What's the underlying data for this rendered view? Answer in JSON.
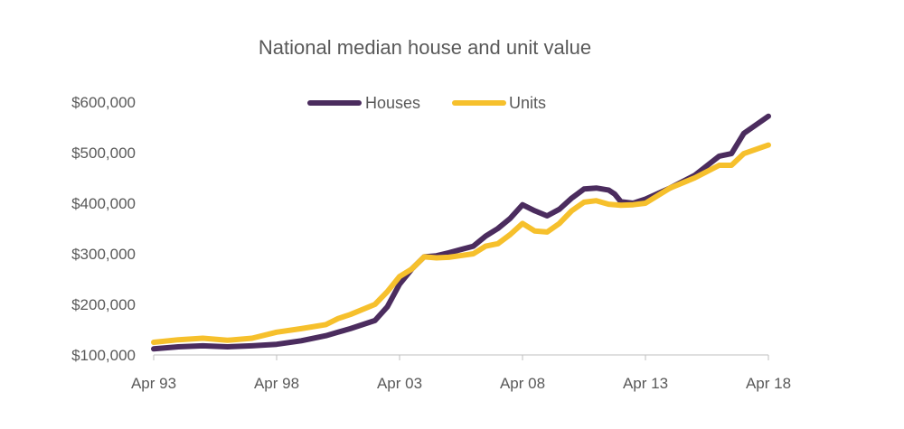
{
  "chart_data": {
    "type": "line",
    "title": "National median house and unit value",
    "xlabel": "",
    "ylabel": "",
    "x_tick_labels": [
      "Apr 93",
      "Apr 98",
      "Apr 03",
      "Apr 08",
      "Apr 13",
      "Apr 18"
    ],
    "y_tick_labels": [
      "$100,000",
      "$200,000",
      "$300,000",
      "$400,000",
      "$500,000",
      "$600,000"
    ],
    "ylim": [
      100000,
      600000
    ],
    "xlim": [
      "1993-04",
      "2018-04"
    ],
    "grid": false,
    "legend_position": "top-center",
    "series": [
      {
        "name": "Houses",
        "color": "#4b2c5e",
        "points": [
          [
            "1993-04",
            112000
          ],
          [
            "1994-04",
            116000
          ],
          [
            "1995-04",
            118000
          ],
          [
            "1996-04",
            116000
          ],
          [
            "1997-04",
            118000
          ],
          [
            "1998-04",
            121000
          ],
          [
            "1999-04",
            128000
          ],
          [
            "2000-04",
            138000
          ],
          [
            "2000-10",
            145000
          ],
          [
            "2001-04",
            152000
          ],
          [
            "2002-04",
            168000
          ],
          [
            "2002-10",
            195000
          ],
          [
            "2003-04",
            240000
          ],
          [
            "2003-10",
            270000
          ],
          [
            "2004-04",
            294000
          ],
          [
            "2004-10",
            296000
          ],
          [
            "2005-04",
            302000
          ],
          [
            "2006-04",
            315000
          ],
          [
            "2006-10",
            335000
          ],
          [
            "2007-04",
            350000
          ],
          [
            "2007-10",
            370000
          ],
          [
            "2008-04",
            397000
          ],
          [
            "2008-10",
            385000
          ],
          [
            "2009-04",
            375000
          ],
          [
            "2009-10",
            388000
          ],
          [
            "2010-04",
            410000
          ],
          [
            "2010-10",
            428000
          ],
          [
            "2011-04",
            430000
          ],
          [
            "2011-10",
            426000
          ],
          [
            "2012-01",
            418000
          ],
          [
            "2012-04",
            403000
          ],
          [
            "2012-10",
            400000
          ],
          [
            "2013-04",
            408000
          ],
          [
            "2014-04",
            430000
          ],
          [
            "2015-04",
            455000
          ],
          [
            "2016-04",
            493000
          ],
          [
            "2016-10",
            498000
          ],
          [
            "2017-04",
            538000
          ],
          [
            "2018-04",
            572000
          ]
        ]
      },
      {
        "name": "Units",
        "color": "#f6c02c",
        "points": [
          [
            "1993-04",
            125000
          ],
          [
            "1994-04",
            130000
          ],
          [
            "1995-04",
            133000
          ],
          [
            "1996-04",
            129000
          ],
          [
            "1997-04",
            133000
          ],
          [
            "1998-04",
            145000
          ],
          [
            "1999-04",
            152000
          ],
          [
            "2000-04",
            160000
          ],
          [
            "2000-10",
            172000
          ],
          [
            "2001-04",
            180000
          ],
          [
            "2002-04",
            200000
          ],
          [
            "2002-10",
            225000
          ],
          [
            "2003-04",
            255000
          ],
          [
            "2003-10",
            270000
          ],
          [
            "2004-04",
            294000
          ],
          [
            "2004-10",
            292000
          ],
          [
            "2005-04",
            293000
          ],
          [
            "2006-04",
            300000
          ],
          [
            "2006-10",
            315000
          ],
          [
            "2007-04",
            320000
          ],
          [
            "2007-10",
            338000
          ],
          [
            "2008-04",
            360000
          ],
          [
            "2008-10",
            345000
          ],
          [
            "2009-04",
            343000
          ],
          [
            "2009-10",
            360000
          ],
          [
            "2010-04",
            385000
          ],
          [
            "2010-10",
            402000
          ],
          [
            "2011-04",
            405000
          ],
          [
            "2011-10",
            398000
          ],
          [
            "2012-04",
            396000
          ],
          [
            "2012-10",
            397000
          ],
          [
            "2013-04",
            400000
          ],
          [
            "2014-04",
            430000
          ],
          [
            "2015-04",
            450000
          ],
          [
            "2016-04",
            475000
          ],
          [
            "2016-10",
            475000
          ],
          [
            "2017-04",
            498000
          ],
          [
            "2018-04",
            515000
          ]
        ]
      }
    ]
  }
}
